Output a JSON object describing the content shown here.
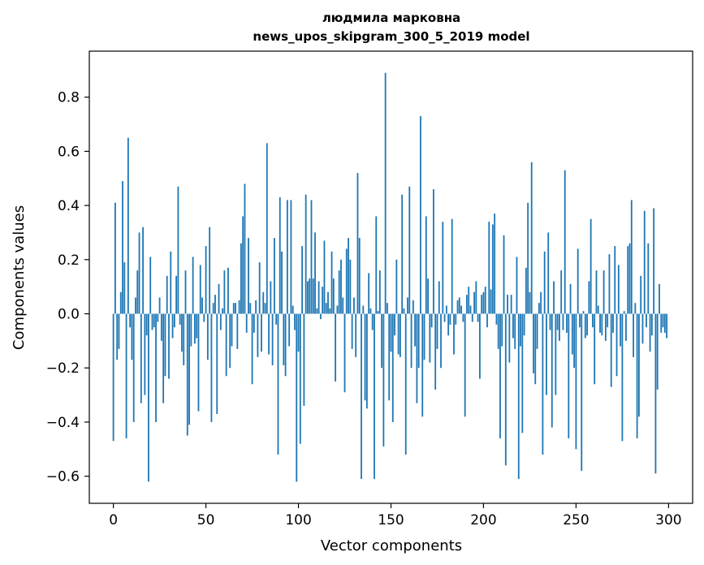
{
  "chart_data": {
    "type": "bar",
    "title": "людмила марковна",
    "subtitle": "news_upos_skipgram_300_5_2019 model",
    "xlabel": "Vector components",
    "ylabel": "Components values",
    "xlim": [
      -13,
      313
    ],
    "ylim": [
      -0.7,
      0.97
    ],
    "xticks": [
      0,
      50,
      100,
      150,
      200,
      250,
      300
    ],
    "yticks": [
      -0.6,
      -0.4,
      -0.2,
      0.0,
      0.2,
      0.4,
      0.6,
      0.8
    ],
    "ytick_labels": [
      "−0.6",
      "−0.4",
      "−0.2",
      "0.0",
      "0.2",
      "0.4",
      "0.6",
      "0.8"
    ],
    "xtick_labels": [
      "0",
      "50",
      "100",
      "150",
      "200",
      "250",
      "300"
    ],
    "grid": false,
    "bar_color": "#1f77b4",
    "x_start": 0,
    "values": [
      -0.47,
      0.41,
      -0.17,
      -0.13,
      0.08,
      0.49,
      0.19,
      -0.46,
      0.65,
      -0.05,
      -0.17,
      -0.4,
      0.06,
      0.16,
      0.3,
      -0.33,
      0.32,
      -0.3,
      -0.08,
      -0.62,
      0.21,
      -0.06,
      -0.05,
      -0.4,
      -0.03,
      0.06,
      -0.1,
      -0.33,
      -0.23,
      0.14,
      -0.24,
      0.23,
      -0.09,
      -0.05,
      0.14,
      0.47,
      -0.04,
      -0.14,
      -0.19,
      0.16,
      -0.45,
      -0.41,
      -0.12,
      0.21,
      -0.11,
      -0.09,
      -0.36,
      0.18,
      0.06,
      -0.03,
      0.25,
      -0.17,
      0.32,
      -0.4,
      0.04,
      0.07,
      -0.37,
      0.11,
      -0.06,
      0.02,
      0.16,
      -0.23,
      0.17,
      -0.2,
      -0.12,
      0.04,
      0.04,
      -0.13,
      0.05,
      0.26,
      0.36,
      0.48,
      -0.07,
      0.28,
      0.04,
      -0.26,
      -0.07,
      0.05,
      -0.16,
      0.19,
      -0.14,
      0.08,
      0.04,
      0.63,
      -0.15,
      0.12,
      -0.19,
      0.28,
      -0.04,
      -0.52,
      0.43,
      0.23,
      -0.19,
      -0.23,
      0.42,
      -0.12,
      0.42,
      0.03,
      -0.06,
      -0.62,
      -0.14,
      -0.48,
      0.25,
      -0.34,
      0.44,
      0.12,
      0.13,
      0.42,
      0.13,
      0.3,
      0.02,
      0.12,
      -0.02,
      0.1,
      0.27,
      0.04,
      0.08,
      0.02,
      0.23,
      0.13,
      -0.25,
      0.03,
      0.16,
      0.2,
      0.06,
      -0.29,
      0.24,
      0.28,
      0.2,
      -0.13,
      0.06,
      -0.16,
      0.52,
      0.28,
      -0.61,
      0.03,
      -0.32,
      -0.35,
      0.15,
      0.02,
      -0.06,
      -0.61,
      0.36,
      0.01,
      0.16,
      -0.2,
      -0.49,
      0.89,
      0.04,
      -0.32,
      -0.14,
      -0.4,
      -0.08,
      0.2,
      -0.15,
      -0.16,
      0.44,
      0.02,
      -0.52,
      0.06,
      0.47,
      -0.2,
      0.05,
      -0.12,
      -0.33,
      -0.2,
      0.73,
      -0.38,
      -0.17,
      0.36,
      0.13,
      -0.18,
      -0.05,
      0.46,
      -0.28,
      -0.13,
      0.12,
      -0.2,
      0.34,
      -0.03,
      0.03,
      -0.08,
      -0.04,
      0.35,
      -0.15,
      -0.04,
      0.05,
      0.06,
      0.03,
      -0.03,
      -0.38,
      0.07,
      0.1,
      0.03,
      -0.03,
      0.08,
      0.12,
      -0.03,
      -0.24,
      0.07,
      0.08,
      0.1,
      -0.05,
      0.34,
      0.09,
      0.33,
      0.37,
      -0.04,
      -0.13,
      -0.46,
      -0.12,
      0.29,
      -0.56,
      0.07,
      -0.18,
      0.07,
      -0.09,
      -0.13,
      0.21,
      -0.61,
      -0.12,
      -0.44,
      -0.08,
      0.17,
      0.41,
      0.08,
      0.56,
      -0.22,
      -0.26,
      -0.13,
      0.04,
      0.08,
      -0.52,
      0.23,
      -0.3,
      0.3,
      -0.06,
      -0.42,
      0.12,
      -0.3,
      -0.06,
      -0.1,
      0.16,
      -0.06,
      0.53,
      -0.07,
      -0.46,
      0.11,
      -0.15,
      -0.2,
      -0.5,
      0.24,
      -0.05,
      -0.58,
      0.01,
      -0.09,
      -0.08,
      0.12,
      0.35,
      -0.05,
      -0.26,
      0.16,
      0.03,
      -0.07,
      -0.08,
      0.16,
      -0.1,
      -0.05,
      0.22,
      -0.27,
      -0.07,
      0.25,
      -0.23,
      0.18,
      -0.12,
      -0.47,
      0.01,
      -0.1,
      0.25,
      0.26,
      0.42,
      -0.16,
      0.04,
      -0.46,
      -0.38,
      0.14,
      -0.11,
      0.38,
      -0.05,
      0.26,
      -0.14,
      -0.08,
      0.39,
      -0.59,
      -0.28,
      0.11,
      -0.07,
      -0.05,
      -0.07,
      -0.09
    ]
  }
}
